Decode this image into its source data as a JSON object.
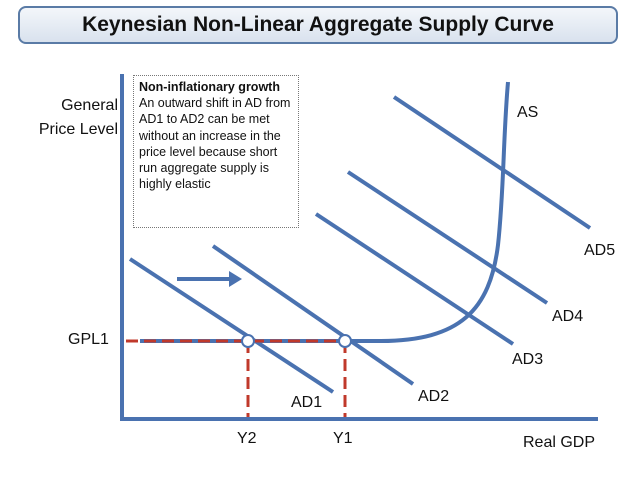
{
  "title": "Keynesian Non-Linear Aggregate Supply Curve",
  "y_axis_label_line1": "General",
  "y_axis_label_line2": "Price Level",
  "x_axis_label": "Real GDP",
  "note": {
    "heading": "Non-inflationary growth",
    "body": "An outward shift in AD from AD1 to AD2 can be met without an increase in the price level because short run aggregate supply is highly elastic"
  },
  "curve_labels": {
    "as": "AS",
    "ad1": "AD1",
    "ad2": "AD2",
    "ad3": "AD3",
    "ad4": "AD4",
    "ad5": "AD5"
  },
  "markers": {
    "gpl1": "GPL1",
    "y1": "Y1",
    "y2": "Y2"
  },
  "colors": {
    "curve": "#4a72b0",
    "guide": "#c0392b",
    "axis": "#4a72b0",
    "title_border": "#5a7ba6"
  }
}
